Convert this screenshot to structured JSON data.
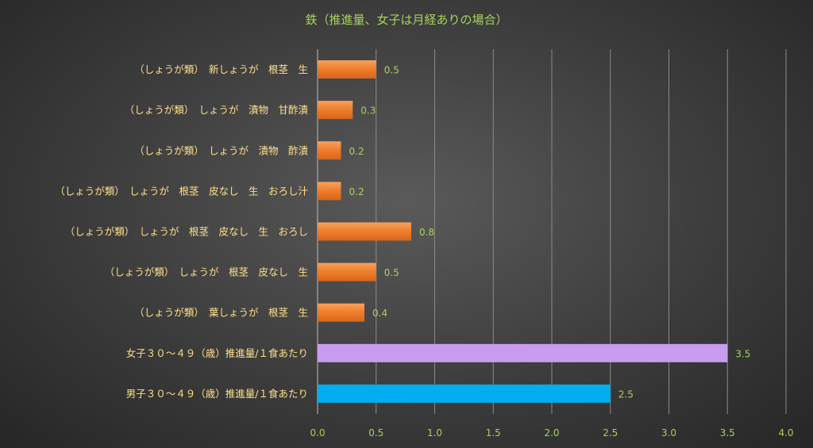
{
  "chart_data": {
    "type": "bar",
    "orientation": "horizontal",
    "title": "鉄（推進量、女子は月経ありの場合）",
    "xlabel": "",
    "ylabel": "",
    "xlim": [
      0,
      4.0
    ],
    "x_ticks": [
      "0.0",
      "0.5",
      "1.0",
      "1.5",
      "2.0",
      "2.5",
      "3.0",
      "3.5",
      "4.0"
    ],
    "grid": "vertical",
    "legend": "none",
    "categories": [
      "（しょうが類）　新しょうが　根茎　生",
      "（しょうが類）　しょうが　漬物　甘酢漬",
      "（しょうが類）　しょうが　漬物　酢漬",
      "（しょうが類）　しょうが　根茎　皮なし　生　おろし汁",
      "（しょうが類）　しょうが　根茎　皮なし　生　おろし",
      "（しょうが類）　しょうが　根茎　皮なし　生",
      "（しょうが類）　葉しょうが　根茎　生",
      "女子３０～４９（歳）推進量/１食あたり",
      "男子３０～４９（歳）推進量/１食あたり"
    ],
    "values": [
      0.5,
      0.3,
      0.2,
      0.2,
      0.8,
      0.5,
      0.4,
      3.5,
      2.5
    ],
    "value_labels": [
      "0.5",
      "0.3",
      "0.2",
      "0.2",
      "0.8",
      "0.5",
      "0.4",
      "3.5",
      "2.5"
    ],
    "bar_colors": [
      "#f07f2e",
      "#f07f2e",
      "#f07f2e",
      "#f07f2e",
      "#f07f2e",
      "#f07f2e",
      "#f07f2e",
      "#c89df0",
      "#00aeef"
    ],
    "colors": {
      "text_green": "#a9d25e",
      "text_yellow": "#ffe08a",
      "grid": "#8a8a8a"
    }
  }
}
